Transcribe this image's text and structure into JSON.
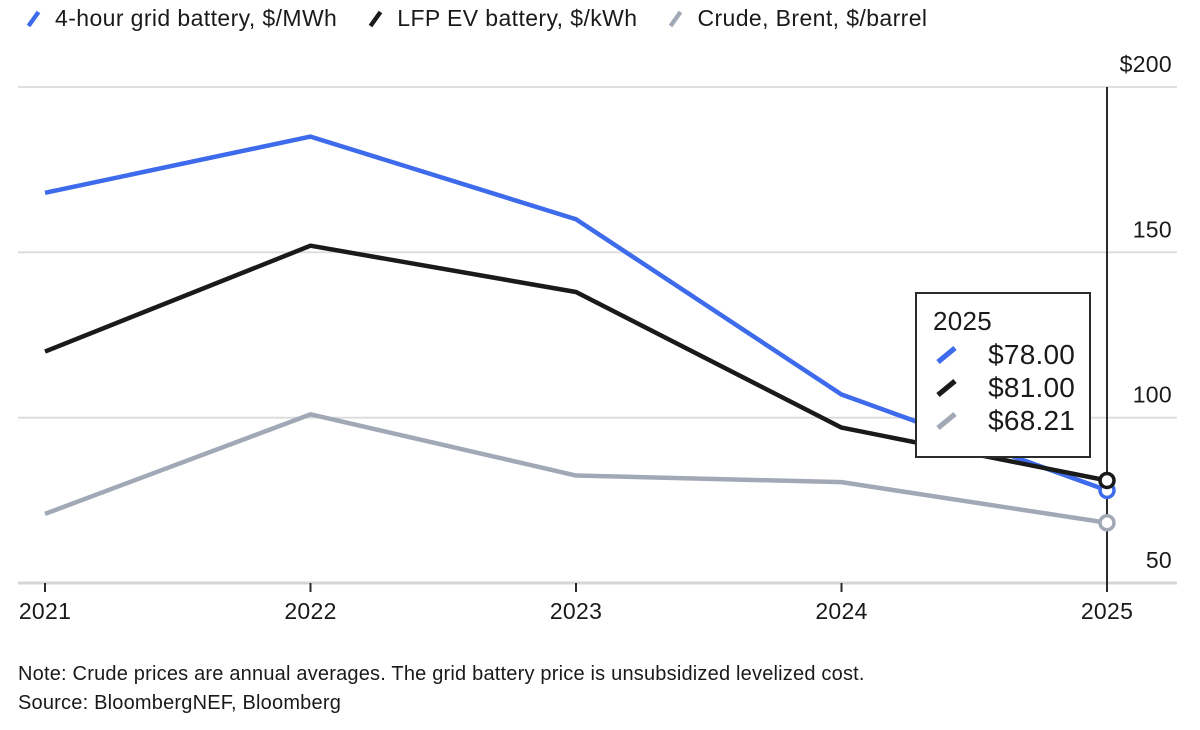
{
  "legend": {
    "items": [
      {
        "label": "4-hour grid battery, $/MWh",
        "color": "#3D6BEB"
      },
      {
        "label": "LFP EV battery, $/kWh",
        "color": "#1A1A1A"
      },
      {
        "label": "Crude, Brent, $/barrel",
        "color": "#A2A9B6"
      }
    ]
  },
  "tooltip": {
    "year": "2025",
    "rows": [
      {
        "series": "4-hour grid battery, $/MWh",
        "value": "$78.00",
        "color": "#3D6BEB"
      },
      {
        "series": "LFP EV battery, $/kWh",
        "value": "$81.00",
        "color": "#1A1A1A"
      },
      {
        "series": "Crude, Brent, $/barrel",
        "value": "$68.21",
        "color": "#A2A9B6"
      }
    ]
  },
  "footer": {
    "note": "Note: Crude prices are annual averages. The grid battery price is unsubsidized levelized cost.",
    "source": "Source: BloombergNEF, Bloomberg"
  },
  "chart_data": {
    "type": "line",
    "title": "",
    "xlabel": "",
    "ylabel": "",
    "categories": [
      "2021",
      "2022",
      "2023",
      "2024",
      "2025"
    ],
    "series": [
      {
        "name": "4-hour grid battery, $/MWh",
        "color": "#3D6BEB",
        "values": [
          168,
          185,
          160,
          107,
          78
        ],
        "end_label": "$78.00"
      },
      {
        "name": "LFP EV battery, $/kWh",
        "color": "#1A1A1A",
        "values": [
          120,
          152,
          138,
          97,
          81
        ],
        "end_label": "$81.00"
      },
      {
        "name": "Crude, Brent, $/barrel",
        "color": "#A2A9B6",
        "values": [
          70.9,
          101,
          82.5,
          80.5,
          68.21
        ],
        "end_label": "$68.21"
      }
    ],
    "y_ticks": [
      {
        "label": "$200",
        "value": 200
      },
      {
        "label": "150",
        "value": 150
      },
      {
        "label": "100",
        "value": 100
      },
      {
        "label": "50",
        "value": 50
      }
    ],
    "ylim": [
      50,
      200
    ],
    "grid": "horizontal",
    "legend_position": "top",
    "highlight_category": "2025",
    "colors": {
      "gridline": "#DBDBDB",
      "axis_line": "#D6D6D6",
      "crosshair": "#2B2B2B",
      "text": "#1A1A1A",
      "marker_fill": "#FFFFFF"
    }
  }
}
